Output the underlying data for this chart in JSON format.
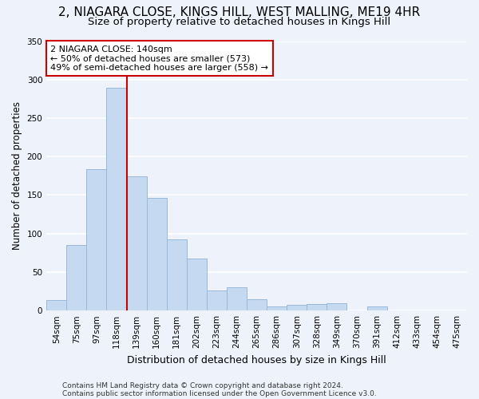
{
  "title1": "2, NIAGARA CLOSE, KINGS HILL, WEST MALLING, ME19 4HR",
  "title2": "Size of property relative to detached houses in Kings Hill",
  "xlabel": "Distribution of detached houses by size in Kings Hill",
  "ylabel": "Number of detached properties",
  "bar_labels": [
    "54sqm",
    "75sqm",
    "97sqm",
    "118sqm",
    "139sqm",
    "160sqm",
    "181sqm",
    "202sqm",
    "223sqm",
    "244sqm",
    "265sqm",
    "286sqm",
    "307sqm",
    "328sqm",
    "349sqm",
    "370sqm",
    "391sqm",
    "412sqm",
    "433sqm",
    "454sqm",
    "475sqm"
  ],
  "bar_values": [
    14,
    85,
    184,
    289,
    174,
    146,
    92,
    68,
    26,
    30,
    15,
    5,
    7,
    8,
    9,
    0,
    5,
    0,
    0,
    0,
    0
  ],
  "bar_color": "#c5d9f0",
  "bar_edge_color": "#9ab8d8",
  "vline_after_index": 3,
  "annotation_text1": "2 NIAGARA CLOSE: 140sqm",
  "annotation_text2": "← 50% of detached houses are smaller (573)",
  "annotation_text3": "49% of semi-detached houses are larger (558) →",
  "annotation_box_color": "#ffffff",
  "annotation_border_color": "#cc0000",
  "vline_color": "#cc0000",
  "footer1": "Contains HM Land Registry data © Crown copyright and database right 2024.",
  "footer2": "Contains public sector information licensed under the Open Government Licence v3.0.",
  "ylim": [
    0,
    350
  ],
  "yticks": [
    0,
    50,
    100,
    150,
    200,
    250,
    300,
    350
  ],
  "background_color": "#eef2fb",
  "grid_color": "#ffffff",
  "title1_fontsize": 11,
  "title2_fontsize": 9.5,
  "ylabel_fontsize": 8.5,
  "xlabel_fontsize": 9,
  "tick_fontsize": 7.5,
  "footer_fontsize": 6.5
}
